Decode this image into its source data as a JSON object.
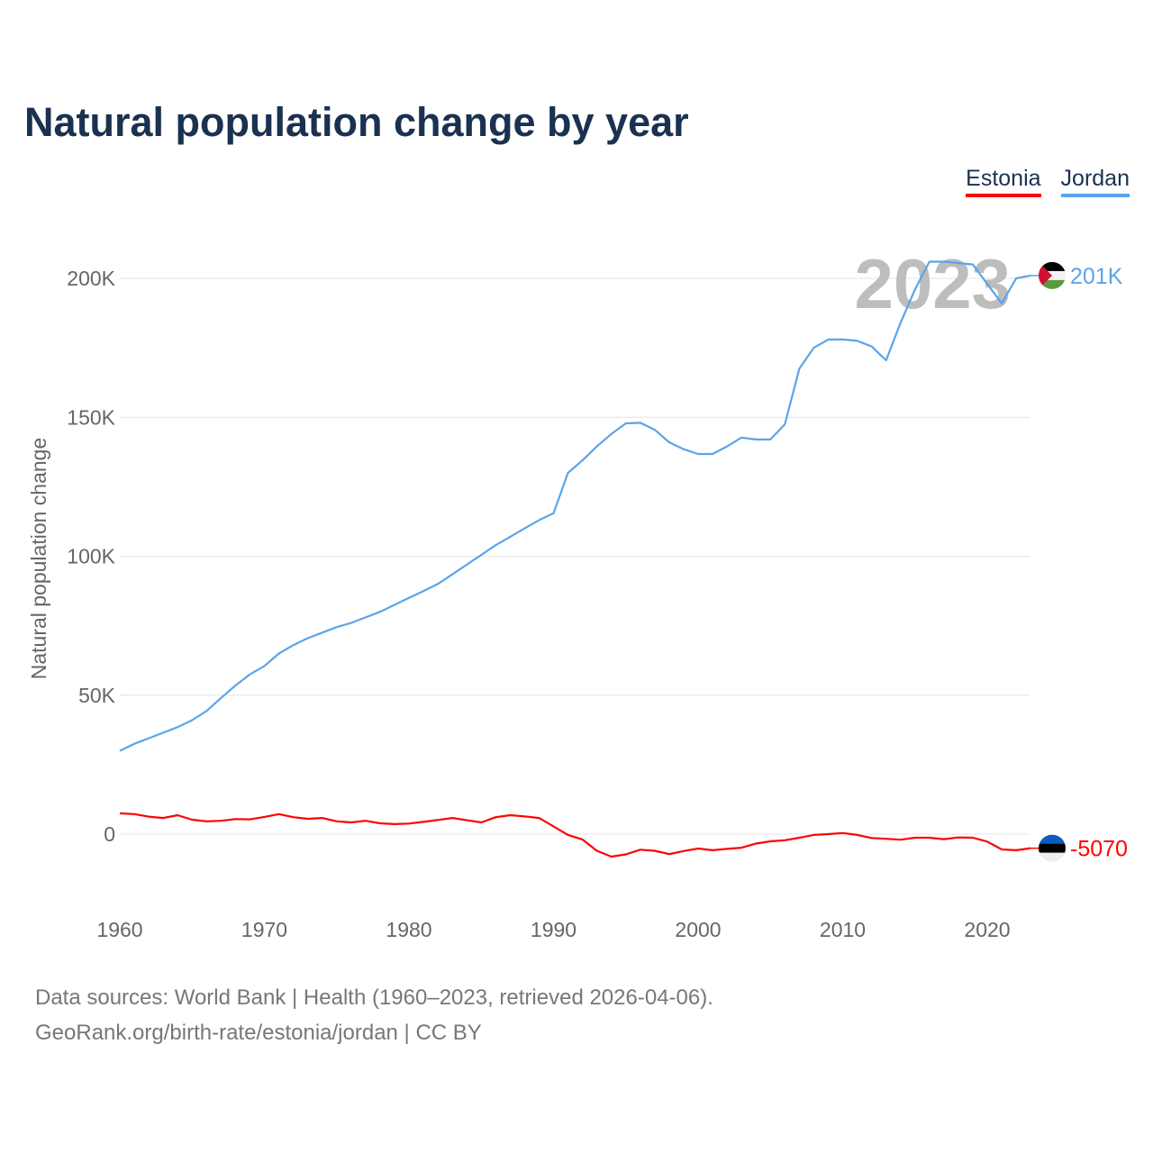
{
  "title": "Natural population change by year",
  "legend": [
    {
      "label": "Estonia",
      "color": "#ff0000"
    },
    {
      "label": "Jordan",
      "color": "#5ba4ea"
    }
  ],
  "year_overlay": "2023",
  "footer": {
    "line1": "Data sources: World Bank | Health (1960–2023, retrieved 2026-04-06).",
    "line2": "GeoRank.org/birth-rate/estonia/jordan | CC BY"
  },
  "chart_data": {
    "type": "line",
    "title": "Natural population change by year",
    "xlabel": "",
    "ylabel": "Natural population change",
    "xlim": [
      1960,
      2023
    ],
    "ylim": [
      -20000,
      215000
    ],
    "x_ticks": [
      1960,
      1970,
      1980,
      1990,
      2000,
      2010,
      2020
    ],
    "y_ticks": [
      0,
      50000,
      100000,
      150000,
      200000
    ],
    "y_tick_labels": [
      "0",
      "50K",
      "100K",
      "150K",
      "200K"
    ],
    "grid": "horizontal",
    "legend_position": "top-right",
    "x": [
      1960,
      1961,
      1962,
      1963,
      1964,
      1965,
      1966,
      1967,
      1968,
      1969,
      1970,
      1971,
      1972,
      1973,
      1974,
      1975,
      1976,
      1977,
      1978,
      1979,
      1980,
      1981,
      1982,
      1983,
      1984,
      1985,
      1986,
      1987,
      1988,
      1989,
      1990,
      1991,
      1992,
      1993,
      1994,
      1995,
      1996,
      1997,
      1998,
      1999,
      2000,
      2001,
      2002,
      2003,
      2004,
      2005,
      2006,
      2007,
      2008,
      2009,
      2010,
      2011,
      2012,
      2013,
      2014,
      2015,
      2016,
      2017,
      2018,
      2019,
      2020,
      2021,
      2022,
      2023
    ],
    "series": [
      {
        "name": "Estonia",
        "color": "#ff0000",
        "end_label": "-5070",
        "values": [
          7500,
          7200,
          6300,
          5800,
          6800,
          5200,
          4600,
          4800,
          5400,
          5300,
          6200,
          7200,
          6100,
          5500,
          5800,
          4600,
          4200,
          4800,
          3900,
          3600,
          3800,
          4400,
          5100,
          5800,
          5000,
          4200,
          6100,
          6800,
          6400,
          5800,
          2800,
          -300,
          -1900,
          -6000,
          -8100,
          -7300,
          -5600,
          -6000,
          -7200,
          -6100,
          -5200,
          -5800,
          -5300,
          -4900,
          -3400,
          -2600,
          -2200,
          -1300,
          -300,
          0,
          400,
          -300,
          -1400,
          -1700,
          -2000,
          -1300,
          -1300,
          -1800,
          -1200,
          -1300,
          -2700,
          -5500,
          -5800,
          -5070
        ]
      },
      {
        "name": "Jordan",
        "color": "#5ba4ea",
        "end_label": "201K",
        "values": [
          30000,
          32500,
          34500,
          36500,
          38500,
          41000,
          44300,
          49000,
          53500,
          57500,
          60500,
          65000,
          68000,
          70500,
          72500,
          74500,
          76000,
          78000,
          80000,
          82500,
          85000,
          87500,
          90000,
          93500,
          97000,
          100500,
          104000,
          107000,
          110000,
          113000,
          115500,
          130000,
          134500,
          139500,
          144000,
          147800,
          148000,
          145500,
          141000,
          138500,
          136800,
          136800,
          139500,
          142700,
          142000,
          142000,
          147500,
          167500,
          175000,
          178000,
          178000,
          177500,
          175500,
          170500,
          184000,
          196000,
          206000,
          206000,
          205500,
          205000,
          198000,
          191000,
          200000,
          201000
        ]
      }
    ]
  }
}
